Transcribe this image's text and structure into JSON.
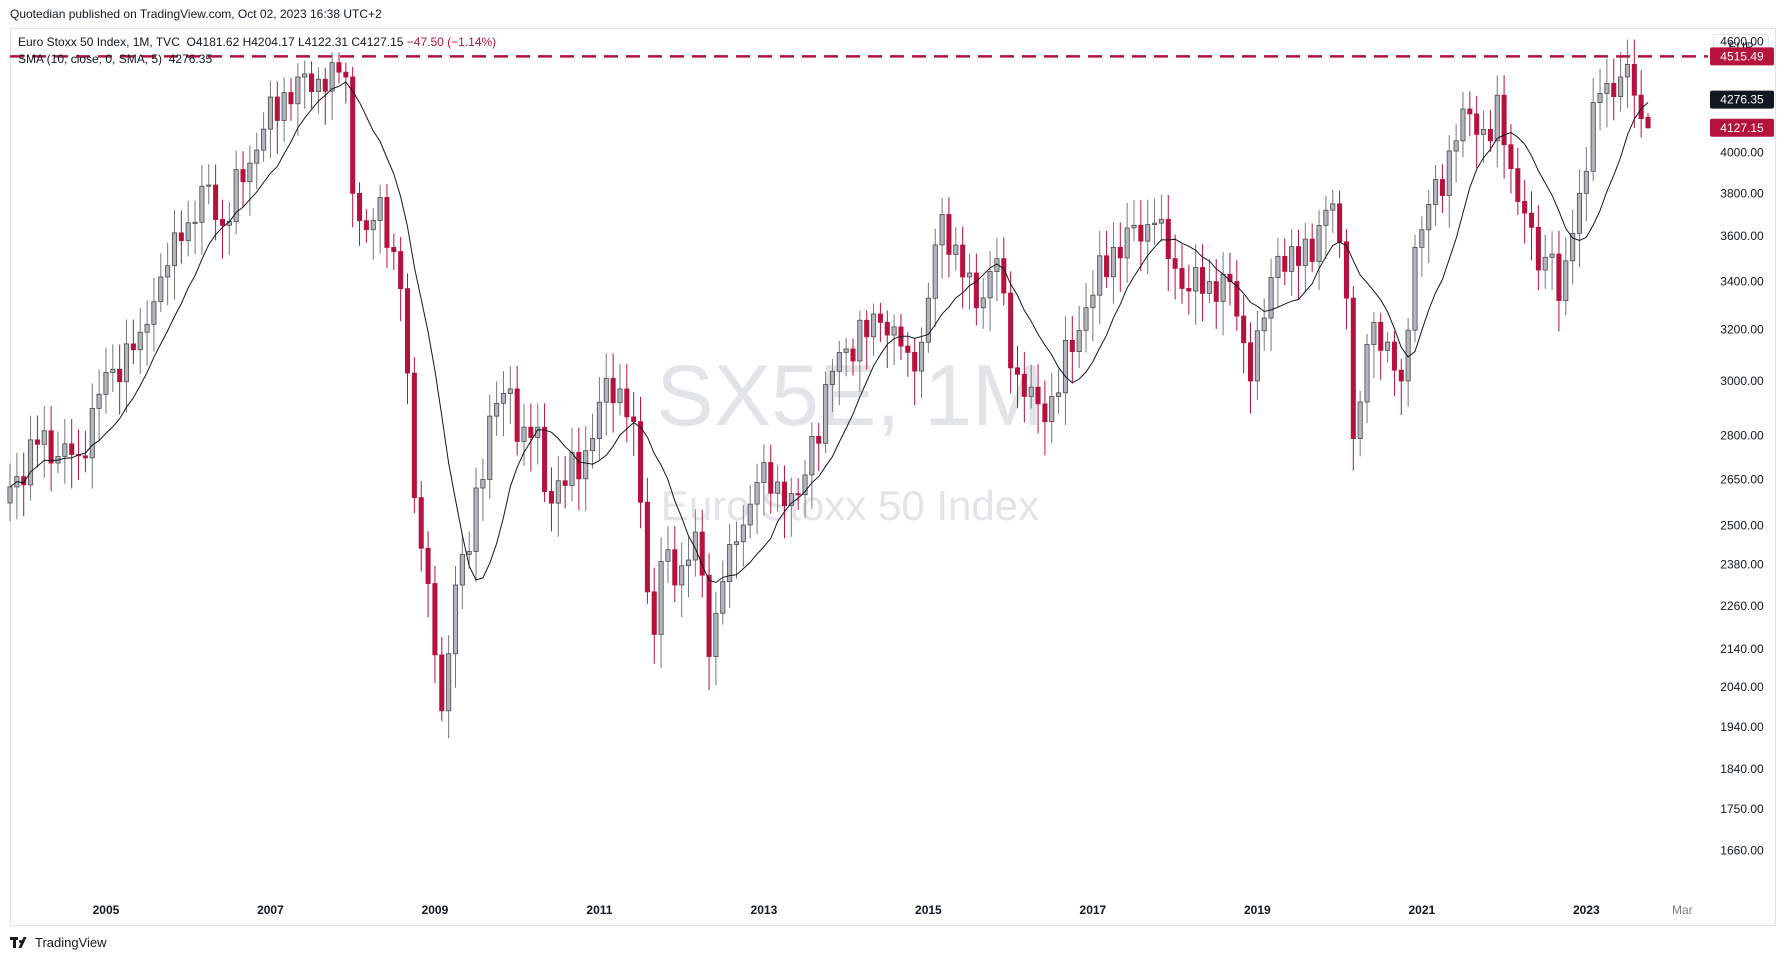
{
  "header": {
    "published": "Quotedian published on TradingView.com, Oct 02, 2023 16:38 UTC+2"
  },
  "legend": {
    "series_info": "Euro Stoxx 50 Index, 1M, TVC",
    "ohlc_open": "O4181.62",
    "ohlc_high": "H4204.17",
    "ohlc_low": "L4122.31",
    "ohlc_close": "C4127.15",
    "change": "−47.50 (−1.14%)",
    "sma_label": "SMA (10, close, 0, SMA, 5)",
    "sma_value": "4276.35"
  },
  "currency": "EUR",
  "footer": {
    "brand": "TradingView"
  },
  "colors": {
    "up": "#b2b5be",
    "down": "#b5123e",
    "sma": "#131722",
    "level": "#b5123e"
  },
  "chart_data": {
    "type": "candlestick",
    "symbol": "SX5E",
    "interval": "1M",
    "watermark_symbol": "SX5E, 1M",
    "watermark_name": "Euro Stoxx 50 Index",
    "y_scale": "log",
    "y_range": [
      1560,
      4680
    ],
    "y_ticks": [
      4600,
      4000,
      3800,
      3600,
      3400,
      3200,
      3000,
      2800,
      2650,
      2500,
      2380,
      2260,
      2140,
      2040,
      1940,
      1840,
      1750,
      1660
    ],
    "x_range": [
      "2003-11",
      "2024-05"
    ],
    "x_ticks": [
      {
        "label": "2005",
        "date": "2005-01"
      },
      {
        "label": "2007",
        "date": "2007-01"
      },
      {
        "label": "2009",
        "date": "2009-01"
      },
      {
        "label": "2011",
        "date": "2011-01"
      },
      {
        "label": "2013",
        "date": "2013-01"
      },
      {
        "label": "2015",
        "date": "2015-01"
      },
      {
        "label": "2017",
        "date": "2017-01"
      },
      {
        "label": "2019",
        "date": "2019-01"
      },
      {
        "label": "2021",
        "date": "2021-01"
      },
      {
        "label": "2023",
        "date": "2023-01"
      },
      {
        "label": "Mar",
        "date": "2024-03"
      }
    ],
    "horizontal_line": {
      "value": 4515.49,
      "label": "4515.49",
      "style": "dashed"
    },
    "price_labels": [
      {
        "value": 4276.35,
        "label": "4276.35",
        "kind": "sma"
      },
      {
        "value": 4127.15,
        "label": "4127.15",
        "kind": "last"
      }
    ],
    "sma_period": 10,
    "close_anchors": [
      [
        "2003-11",
        2625
      ],
      [
        "2004-03",
        2770
      ],
      [
        "2004-09",
        2730
      ],
      [
        "2004-12",
        2950
      ],
      [
        "2005-06",
        3190
      ],
      [
        "2005-09",
        3420
      ],
      [
        "2005-12",
        3580
      ],
      [
        "2006-04",
        3840
      ],
      [
        "2006-06",
        3650
      ],
      [
        "2006-12",
        4120
      ],
      [
        "2007-05",
        4400
      ],
      [
        "2007-07",
        4320
      ],
      [
        "2007-10",
        4480
      ],
      [
        "2007-12",
        4400
      ],
      [
        "2008-01",
        3800
      ],
      [
        "2008-03",
        3630
      ],
      [
        "2008-05",
        3780
      ],
      [
        "2008-08",
        3370
      ],
      [
        "2008-09",
        3030
      ],
      [
        "2008-10",
        2590
      ],
      [
        "2008-11",
        2430
      ],
      [
        "2009-02",
        1980
      ],
      [
        "2009-04",
        2320
      ],
      [
        "2009-06",
        2420
      ],
      [
        "2009-09",
        2870
      ],
      [
        "2009-12",
        2970
      ],
      [
        "2010-01",
        2780
      ],
      [
        "2010-04",
        2830
      ],
      [
        "2010-05",
        2610
      ],
      [
        "2010-08",
        2630
      ],
      [
        "2010-12",
        2790
      ],
      [
        "2011-02",
        3010
      ],
      [
        "2011-04",
        2970
      ],
      [
        "2011-06",
        2850
      ],
      [
        "2011-08",
        2300
      ],
      [
        "2011-09",
        2180
      ],
      [
        "2011-10",
        2390
      ],
      [
        "2011-12",
        2320
      ],
      [
        "2012-03",
        2480
      ],
      [
        "2012-05",
        2120
      ],
      [
        "2012-07",
        2330
      ],
      [
        "2012-09",
        2450
      ],
      [
        "2012-12",
        2640
      ],
      [
        "2013-06",
        2600
      ],
      [
        "2013-12",
        3110
      ],
      [
        "2014-06",
        3230
      ],
      [
        "2014-10",
        3110
      ],
      [
        "2014-12",
        3150
      ],
      [
        "2015-03",
        3700
      ],
      [
        "2015-06",
        3420
      ],
      [
        "2015-08",
        3290
      ],
      [
        "2015-11",
        3500
      ],
      [
        "2016-01",
        3050
      ],
      [
        "2016-06",
        2850
      ],
      [
        "2016-12",
        3290
      ],
      [
        "2017-04",
        3550
      ],
      [
        "2017-10",
        3660
      ],
      [
        "2017-12",
        3500
      ],
      [
        "2018-03",
        3360
      ],
      [
        "2018-06",
        3400
      ],
      [
        "2018-09",
        3400
      ],
      [
        "2018-12",
        3000
      ],
      [
        "2019-04",
        3510
      ],
      [
        "2019-07",
        3470
      ],
      [
        "2019-12",
        3750
      ],
      [
        "2020-02",
        3330
      ],
      [
        "2020-03",
        2790
      ],
      [
        "2020-06",
        3230
      ],
      [
        "2020-10",
        3000
      ],
      [
        "2020-12",
        3550
      ],
      [
        "2021-06",
        4060
      ],
      [
        "2021-08",
        4200
      ],
      [
        "2021-11",
        4060
      ],
      [
        "2021-12",
        4300
      ],
      [
        "2022-02",
        3920
      ],
      [
        "2022-06",
        3450
      ],
      [
        "2022-08",
        3520
      ],
      [
        "2022-09",
        3320
      ],
      [
        "2022-12",
        3800
      ],
      [
        "2023-03",
        4310
      ],
      [
        "2023-06",
        4400
      ],
      [
        "2023-07",
        4470
      ],
      [
        "2023-08",
        4300
      ],
      [
        "2023-09",
        4175
      ],
      [
        "2023-10",
        4127.15
      ]
    ]
  }
}
